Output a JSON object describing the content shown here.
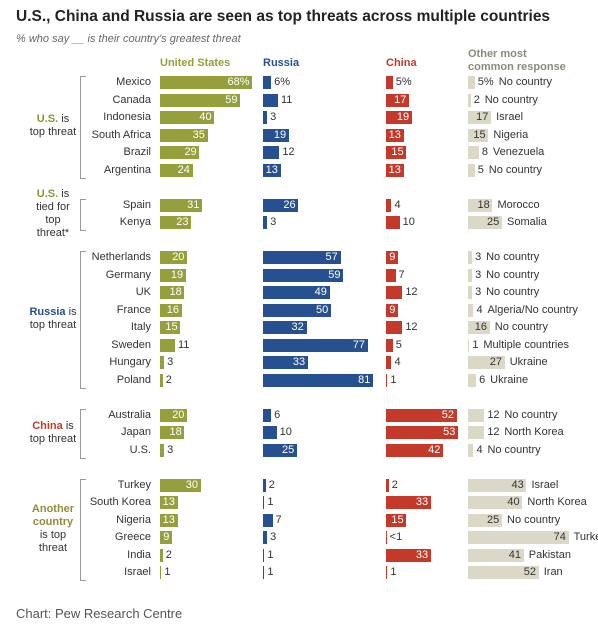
{
  "chart_data": {
    "type": "bar",
    "title": "U.S., China and Russia are seen as top threats across multiple countries",
    "subtitle": "% who say __ is their country's greatest threat",
    "source": "Chart: Pew Research Centre",
    "columns": [
      {
        "name": "United States",
        "color": "#959f3c"
      },
      {
        "name": "Russia",
        "color": "#26508f"
      },
      {
        "name": "China",
        "color": "#c43a2a"
      },
      {
        "name": "Other most common response",
        "color": "#dcd8c8"
      }
    ],
    "groups": [
      {
        "name": "U.S.",
        "note": "is top threat",
        "color": "#8a9632",
        "rows": [
          {
            "label": "Mexico",
            "values": [
              68,
              6,
              5,
              5
            ],
            "value_labels": [
              "68%",
              "6%",
              "5%",
              "5%"
            ],
            "response": "No country"
          },
          {
            "label": "Canada",
            "values": [
              59,
              11,
              17,
              2
            ],
            "response": "No country"
          },
          {
            "label": "Indonesia",
            "values": [
              40,
              3,
              19,
              17
            ],
            "response": "Israel"
          },
          {
            "label": "South Africa",
            "values": [
              35,
              19,
              13,
              15
            ],
            "response": "Nigeria"
          },
          {
            "label": "Brazil",
            "values": [
              29,
              12,
              15,
              8
            ],
            "response": "Venezuela"
          },
          {
            "label": "Argentina",
            "values": [
              24,
              13,
              13,
              5
            ],
            "response": "No country"
          }
        ]
      },
      {
        "name": "U.S.",
        "note": "is tied for top threat*",
        "color": "#8a9632",
        "rows": [
          {
            "label": "Spain",
            "values": [
              31,
              26,
              4,
              18
            ],
            "response": "Morocco"
          },
          {
            "label": "Kenya",
            "values": [
              23,
              3,
              10,
              25
            ],
            "response": "Somalia"
          }
        ]
      },
      {
        "name": "Russia",
        "note": "is top threat",
        "color": "#26508f",
        "rows": [
          {
            "label": "Netherlands",
            "values": [
              20,
              57,
              9,
              3
            ],
            "response": "No country"
          },
          {
            "label": "Germany",
            "values": [
              19,
              59,
              7,
              3
            ],
            "response": "No country"
          },
          {
            "label": "UK",
            "values": [
              18,
              49,
              12,
              3
            ],
            "response": "No country"
          },
          {
            "label": "France",
            "values": [
              16,
              50,
              9,
              4
            ],
            "response": "Algeria/No country"
          },
          {
            "label": "Italy",
            "values": [
              15,
              32,
              12,
              16
            ],
            "response": "No country"
          },
          {
            "label": "Sweden",
            "values": [
              11,
              77,
              5,
              1
            ],
            "response": "Multiple countries"
          },
          {
            "label": "Hungary",
            "values": [
              3,
              33,
              4,
              27
            ],
            "response": "Ukraine"
          },
          {
            "label": "Poland",
            "values": [
              2,
              81,
              1,
              6
            ],
            "response": "Ukraine"
          }
        ]
      },
      {
        "name": "China",
        "note": "is top threat",
        "color": "#c43a2a",
        "rows": [
          {
            "label": "Australia",
            "values": [
              20,
              6,
              52,
              12
            ],
            "response": "No country"
          },
          {
            "label": "Japan",
            "values": [
              18,
              10,
              53,
              12
            ],
            "response": "North Korea"
          },
          {
            "label": "U.S.",
            "values": [
              3,
              25,
              42,
              4
            ],
            "response": "No country"
          }
        ]
      },
      {
        "name": "Another country",
        "note": "is top threat",
        "color": "#958a3a",
        "rows": [
          {
            "label": "Turkey",
            "values": [
              30,
              2,
              2,
              43
            ],
            "response": "Israel"
          },
          {
            "label": "South Korea",
            "values": [
              13,
              1,
              33,
              40
            ],
            "response": "North Korea"
          },
          {
            "label": "Nigeria",
            "values": [
              13,
              7,
              15,
              25
            ],
            "response": "No country"
          },
          {
            "label": "Greece",
            "values": [
              9,
              3,
              0.5,
              74
            ],
            "value_labels": [
              "9",
              "3",
              "<1",
              "74"
            ],
            "response": "Turkey"
          },
          {
            "label": "India",
            "values": [
              2,
              1,
              33,
              41
            ],
            "response": "Pakistan"
          },
          {
            "label": "Israel",
            "values": [
              1,
              1,
              1,
              52
            ],
            "response": "Iran"
          }
        ]
      }
    ]
  }
}
